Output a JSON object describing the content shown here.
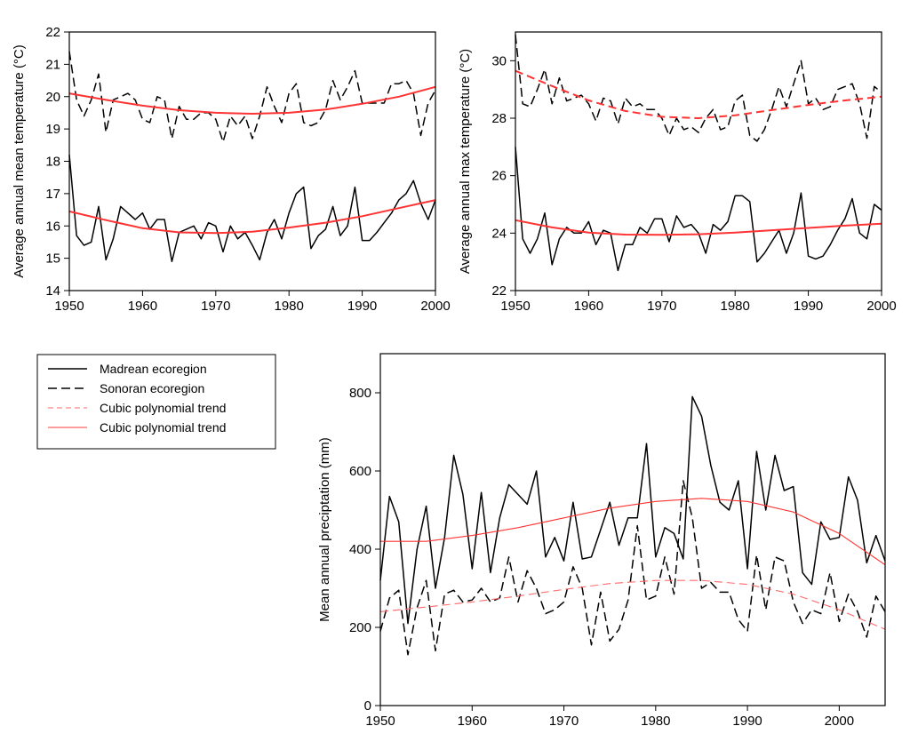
{
  "legend": {
    "entries": [
      {
        "label": "Madrean ecoregion",
        "stroke": "#000000",
        "dash": "solid",
        "width": 1.6
      },
      {
        "label": "Sonoran ecoregion",
        "stroke": "#000000",
        "dash": "long",
        "width": 1.6
      },
      {
        "label": "Cubic polynomial trend",
        "stroke": "#ff6b6b",
        "dash": "short",
        "width": 1
      },
      {
        "label": "Cubic polynomial trend",
        "stroke": "#ff3b3b",
        "dash": "solid",
        "width": 1
      }
    ]
  },
  "chart_data": [
    {
      "type": "line",
      "title": "",
      "xlabel": "",
      "ylabel": "Average annual mean temperature (°C)",
      "xlim": [
        1950,
        2000
      ],
      "ylim": [
        14,
        22
      ],
      "xticks": [
        1950,
        1960,
        1970,
        1980,
        1990,
        2000
      ],
      "yticks": [
        14,
        15,
        16,
        17,
        18,
        19,
        20,
        21,
        22
      ],
      "series": [
        {
          "name": "Sonoran ecoregion",
          "style": "dashed",
          "color": "#000000",
          "x": [
            1950,
            1951,
            1952,
            1953,
            1954,
            1955,
            1956,
            1957,
            1958,
            1959,
            1960,
            1961,
            1962,
            1963,
            1964,
            1965,
            1966,
            1967,
            1968,
            1969,
            1970,
            1971,
            1972,
            1973,
            1974,
            1975,
            1976,
            1977,
            1978,
            1979,
            1980,
            1981,
            1982,
            1983,
            1984,
            1985,
            1986,
            1987,
            1988,
            1989,
            1990,
            1991,
            1992,
            1993,
            1994,
            1995,
            1996,
            1997,
            1998,
            1999,
            2000
          ],
          "values": [
            21.4,
            19.9,
            19.4,
            19.9,
            20.7,
            18.9,
            19.9,
            20.0,
            20.1,
            19.9,
            19.3,
            19.2,
            20.0,
            19.9,
            18.7,
            19.7,
            19.3,
            19.3,
            19.5,
            19.5,
            19.3,
            18.6,
            19.4,
            19.1,
            19.4,
            18.7,
            19.4,
            20.3,
            19.7,
            19.2,
            20.1,
            20.4,
            19.2,
            19.1,
            19.2,
            19.6,
            20.5,
            19.9,
            20.3,
            20.8,
            19.8,
            19.8,
            19.8,
            19.8,
            20.4,
            20.4,
            20.5,
            20.1,
            18.8,
            19.8,
            20.2
          ]
        },
        {
          "name": "Madrean ecoregion",
          "style": "solid",
          "color": "#000000",
          "x": [
            1950,
            1951,
            1952,
            1953,
            1954,
            1955,
            1956,
            1957,
            1958,
            1959,
            1960,
            1961,
            1962,
            1963,
            1964,
            1965,
            1966,
            1967,
            1968,
            1969,
            1970,
            1971,
            1972,
            1973,
            1974,
            1975,
            1976,
            1977,
            1978,
            1979,
            1980,
            1981,
            1982,
            1983,
            1984,
            1985,
            1986,
            1987,
            1988,
            1989,
            1990,
            1991,
            1992,
            1993,
            1994,
            1995,
            1996,
            1997,
            1998,
            1999,
            2000
          ],
          "values": [
            18.2,
            15.7,
            15.4,
            15.5,
            16.6,
            14.95,
            15.6,
            16.6,
            16.4,
            16.2,
            16.4,
            15.9,
            16.2,
            16.2,
            14.9,
            15.8,
            15.9,
            16.0,
            15.6,
            16.1,
            16.0,
            15.2,
            16.0,
            15.6,
            15.8,
            15.4,
            14.95,
            15.8,
            16.2,
            15.6,
            16.4,
            17.0,
            17.2,
            15.3,
            15.7,
            15.9,
            16.6,
            15.7,
            16.0,
            17.2,
            15.55,
            15.55,
            15.8,
            16.1,
            16.4,
            16.8,
            17.0,
            17.4,
            16.7,
            16.2,
            16.8
          ]
        },
        {
          "name": "Cubic polynomial trend (Sonoran)",
          "style": "trend",
          "color": "#ff3333",
          "x": [
            1950,
            1955,
            1960,
            1965,
            1970,
            1975,
            1980,
            1985,
            1990,
            1995,
            2000
          ],
          "values": [
            20.1,
            19.9,
            19.72,
            19.58,
            19.5,
            19.47,
            19.5,
            19.6,
            19.78,
            20.0,
            20.3
          ]
        },
        {
          "name": "Cubic polynomial trend (Madrean)",
          "style": "trend",
          "color": "#ff3333",
          "x": [
            1950,
            1955,
            1960,
            1965,
            1970,
            1975,
            1980,
            1985,
            1990,
            1995,
            2000
          ],
          "values": [
            16.45,
            16.18,
            15.93,
            15.8,
            15.78,
            15.82,
            15.95,
            16.1,
            16.3,
            16.55,
            16.8
          ]
        }
      ]
    },
    {
      "type": "line",
      "title": "",
      "xlabel": "",
      "ylabel": "Average annual max temperature (°C)",
      "xlim": [
        1950,
        2000
      ],
      "ylim": [
        22,
        31
      ],
      "xticks": [
        1950,
        1960,
        1970,
        1980,
        1990,
        2000
      ],
      "yticks": [
        22,
        24,
        26,
        28,
        30
      ],
      "series": [
        {
          "name": "Sonoran ecoregion",
          "style": "dashed",
          "color": "#000000",
          "x": [
            1950,
            1951,
            1952,
            1953,
            1954,
            1955,
            1956,
            1957,
            1958,
            1959,
            1960,
            1961,
            1962,
            1963,
            1964,
            1965,
            1966,
            1967,
            1968,
            1969,
            1970,
            1971,
            1972,
            1973,
            1974,
            1975,
            1976,
            1977,
            1978,
            1979,
            1980,
            1981,
            1982,
            1983,
            1984,
            1985,
            1986,
            1987,
            1988,
            1989,
            1990,
            1991,
            1992,
            1993,
            1994,
            1995,
            1996,
            1997,
            1998,
            1999,
            2000
          ],
          "values": [
            30.9,
            28.5,
            28.4,
            29.0,
            29.7,
            28.5,
            29.4,
            28.6,
            28.7,
            28.8,
            28.5,
            27.9,
            28.7,
            28.6,
            27.8,
            28.7,
            28.4,
            28.5,
            28.3,
            28.3,
            28.0,
            27.4,
            28.0,
            27.6,
            27.7,
            27.5,
            28.0,
            28.3,
            27.6,
            27.7,
            28.6,
            28.8,
            27.4,
            27.2,
            27.6,
            28.3,
            29.1,
            28.4,
            29.2,
            30.0,
            28.5,
            28.7,
            28.3,
            28.4,
            29.0,
            29.1,
            29.2,
            28.5,
            27.3,
            29.1,
            28.9
          ]
        },
        {
          "name": "Madrean ecoregion",
          "style": "solid",
          "color": "#000000",
          "x": [
            1950,
            1951,
            1952,
            1953,
            1954,
            1955,
            1956,
            1957,
            1958,
            1959,
            1960,
            1961,
            1962,
            1963,
            1964,
            1965,
            1966,
            1967,
            1968,
            1969,
            1970,
            1971,
            1972,
            1973,
            1974,
            1975,
            1976,
            1977,
            1978,
            1979,
            1980,
            1981,
            1982,
            1983,
            1984,
            1985,
            1986,
            1987,
            1988,
            1989,
            1990,
            1991,
            1992,
            1993,
            1994,
            1995,
            1996,
            1997,
            1998,
            1999,
            2000
          ],
          "values": [
            27.0,
            23.8,
            23.3,
            23.8,
            24.7,
            22.9,
            23.8,
            24.2,
            24.0,
            24.0,
            24.4,
            23.6,
            24.1,
            24.0,
            22.7,
            23.6,
            23.6,
            24.2,
            24.0,
            24.5,
            24.5,
            23.7,
            24.6,
            24.2,
            24.3,
            24.0,
            23.3,
            24.3,
            24.1,
            24.4,
            25.3,
            25.3,
            25.1,
            23.0,
            23.3,
            23.7,
            24.1,
            23.3,
            24.0,
            25.4,
            23.2,
            23.1,
            23.2,
            23.6,
            24.1,
            24.5,
            25.2,
            24.0,
            23.8,
            25.0,
            24.8
          ]
        },
        {
          "name": "Cubic polynomial trend (Sonoran)",
          "style": "trend-dashed",
          "color": "#ff3333",
          "x": [
            1950,
            1955,
            1960,
            1965,
            1970,
            1975,
            1980,
            1985,
            1990,
            1995,
            2000
          ],
          "values": [
            29.65,
            29.12,
            28.62,
            28.25,
            28.05,
            28.0,
            28.1,
            28.28,
            28.46,
            28.62,
            28.75
          ]
        },
        {
          "name": "Cubic polynomial trend (Madrean)",
          "style": "trend",
          "color": "#ff3333",
          "x": [
            1950,
            1955,
            1960,
            1965,
            1970,
            1975,
            1980,
            1985,
            1990,
            1995,
            2000
          ],
          "values": [
            24.45,
            24.2,
            24.02,
            23.95,
            23.94,
            23.96,
            24.02,
            24.1,
            24.18,
            24.26,
            24.33
          ]
        }
      ]
    },
    {
      "type": "line",
      "title": "",
      "xlabel": "",
      "ylabel": "Mean annual preciptation (mm)",
      "xlim": [
        1950,
        2005
      ],
      "ylim": [
        0,
        900
      ],
      "xticks": [
        1950,
        1960,
        1970,
        1980,
        1990,
        2000
      ],
      "yticks": [
        0,
        200,
        400,
        600,
        800
      ],
      "series": [
        {
          "name": "Madrean ecoregion",
          "style": "solid",
          "color": "#000000",
          "x": [
            1950,
            1951,
            1952,
            1953,
            1954,
            1955,
            1956,
            1957,
            1958,
            1959,
            1960,
            1961,
            1962,
            1963,
            1964,
            1965,
            1966,
            1967,
            1968,
            1969,
            1970,
            1971,
            1972,
            1973,
            1974,
            1975,
            1976,
            1977,
            1978,
            1979,
            1980,
            1981,
            1982,
            1983,
            1984,
            1985,
            1986,
            1987,
            1988,
            1989,
            1990,
            1991,
            1992,
            1993,
            1994,
            1995,
            1996,
            1997,
            1998,
            1999,
            2000,
            2001,
            2002,
            2003,
            2004,
            2005
          ],
          "values": [
            320,
            535,
            470,
            210,
            400,
            510,
            300,
            430,
            640,
            540,
            350,
            545,
            340,
            480,
            565,
            540,
            515,
            600,
            380,
            430,
            370,
            520,
            375,
            380,
            450,
            520,
            410,
            480,
            480,
            670,
            380,
            455,
            440,
            375,
            790,
            740,
            615,
            520,
            500,
            575,
            350,
            650,
            500,
            640,
            550,
            560,
            340,
            310,
            470,
            425,
            430,
            585,
            525,
            365,
            435,
            370
          ]
        },
        {
          "name": "Sonoran ecoregion",
          "style": "dashed",
          "color": "#000000",
          "x": [
            1950,
            1951,
            1952,
            1953,
            1954,
            1955,
            1956,
            1957,
            1958,
            1959,
            1960,
            1961,
            1962,
            1963,
            1964,
            1965,
            1966,
            1967,
            1968,
            1969,
            1970,
            1971,
            1972,
            1973,
            1974,
            1975,
            1976,
            1977,
            1978,
            1979,
            1980,
            1981,
            1982,
            1983,
            1984,
            1985,
            1986,
            1987,
            1988,
            1989,
            1990,
            1991,
            1992,
            1993,
            1994,
            1995,
            1996,
            1997,
            1998,
            1999,
            2000,
            2001,
            2002,
            2003,
            2004,
            2005
          ],
          "values": [
            190,
            275,
            295,
            130,
            250,
            320,
            140,
            285,
            295,
            265,
            270,
            300,
            265,
            275,
            380,
            265,
            345,
            300,
            235,
            245,
            265,
            355,
            300,
            155,
            290,
            165,
            195,
            270,
            460,
            270,
            280,
            380,
            285,
            575,
            480,
            300,
            315,
            290,
            290,
            220,
            190,
            385,
            245,
            380,
            370,
            265,
            210,
            245,
            235,
            340,
            215,
            285,
            240,
            175,
            280,
            240
          ]
        },
        {
          "name": "Cubic polynomial trend (Madrean)",
          "style": "trend",
          "color": "#ff3333",
          "x": [
            1950,
            1955,
            1960,
            1965,
            1970,
            1975,
            1980,
            1985,
            1990,
            1995,
            2000,
            2005
          ],
          "values": [
            420,
            420,
            435,
            455,
            480,
            505,
            522,
            530,
            522,
            495,
            440,
            360
          ]
        },
        {
          "name": "Cubic polynomial trend (Sonoran)",
          "style": "trend-dashed",
          "color": "#ff6b6b",
          "x": [
            1950,
            1955,
            1960,
            1965,
            1970,
            1975,
            1980,
            1985,
            1990,
            1995,
            2000,
            2005
          ],
          "values": [
            240,
            252,
            265,
            280,
            297,
            312,
            320,
            320,
            310,
            285,
            245,
            195
          ]
        }
      ]
    }
  ]
}
